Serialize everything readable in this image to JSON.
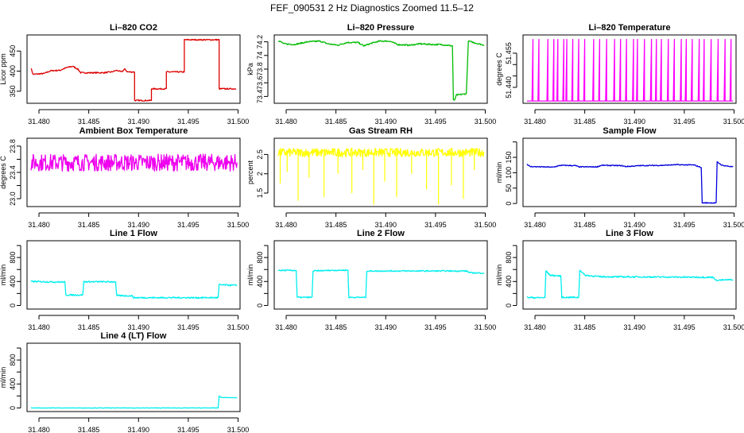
{
  "title": "FEF_090531  2 Hz Diagnostics Zoomed 11.5–12",
  "chart_data": [
    {
      "type": "line",
      "title": "Li–820 CO2",
      "ylabel": "Licor ppm",
      "color": "#dd0000",
      "xlim": [
        31.4788,
        31.5002
      ],
      "ylim": [
        320,
        490
      ],
      "yticks": [
        350,
        400,
        450
      ],
      "noise": 1.5,
      "xticks": [
        31.48,
        31.485,
        31.49,
        31.495,
        31.5
      ],
      "xticklabels": [
        "31.480",
        "31.485",
        "31.490",
        "31.495",
        "31.500"
      ],
      "points": [
        [
          31.4792,
          408
        ],
        [
          31.4794,
          392
        ],
        [
          31.4805,
          394
        ],
        [
          31.4812,
          401
        ],
        [
          31.4821,
          402
        ],
        [
          31.4828,
          409
        ],
        [
          31.4834,
          412
        ],
        [
          31.4839,
          405
        ],
        [
          31.4842,
          396
        ],
        [
          31.4865,
          396
        ],
        [
          31.4873,
          398
        ],
        [
          31.4878,
          402
        ],
        [
          31.4883,
          398
        ],
        [
          31.4886,
          405
        ],
        [
          31.4889,
          398
        ],
        [
          31.4896,
          398
        ],
        [
          31.4896,
          327
        ],
        [
          31.4913,
          327
        ],
        [
          31.4913,
          356
        ],
        [
          31.4928,
          356
        ],
        [
          31.4928,
          398
        ],
        [
          31.4946,
          398
        ],
        [
          31.4946,
          478
        ],
        [
          31.4981,
          478
        ],
        [
          31.4981,
          356
        ],
        [
          31.4998,
          356
        ]
      ]
    },
    {
      "type": "line",
      "title": "Li–820 Pressure",
      "ylabel": "kPa",
      "color": "#00bb00",
      "xlim": [
        31.4788,
        31.5002
      ],
      "ylim": [
        73.3,
        74.3
      ],
      "yticks": [
        73.4,
        73.6,
        73.8,
        74.0,
        74.2
      ],
      "noise": 0.01,
      "xticks": [
        31.48,
        31.485,
        31.49,
        31.495,
        31.5
      ],
      "xticklabels": [
        "31.480",
        "31.485",
        "31.490",
        "31.495",
        "31.500"
      ],
      "points": [
        [
          31.4792,
          74.22
        ],
        [
          31.4798,
          74.17
        ],
        [
          31.4808,
          74.16
        ],
        [
          31.4815,
          74.18
        ],
        [
          31.4822,
          74.2
        ],
        [
          31.4834,
          74.21
        ],
        [
          31.4842,
          74.17
        ],
        [
          31.4852,
          74.15
        ],
        [
          31.4861,
          74.19
        ],
        [
          31.4872,
          74.19
        ],
        [
          31.4878,
          74.14
        ],
        [
          31.4886,
          74.18
        ],
        [
          31.4894,
          74.21
        ],
        [
          31.4904,
          74.21
        ],
        [
          31.4912,
          74.16
        ],
        [
          31.4924,
          74.15
        ],
        [
          31.4934,
          74.17
        ],
        [
          31.4948,
          74.16
        ],
        [
          31.4956,
          74.16
        ],
        [
          31.4967,
          74.14
        ],
        [
          31.4968,
          73.35
        ],
        [
          31.4969,
          73.34
        ],
        [
          31.4971,
          73.42
        ],
        [
          31.4981,
          73.44
        ],
        [
          31.4983,
          74.21
        ],
        [
          31.4988,
          74.19
        ],
        [
          31.4999,
          74.15
        ]
      ]
    },
    {
      "type": "line",
      "title": "Li–820 Temperature",
      "ylabel": "degrees C",
      "color": "#ff00ff",
      "xlim": [
        31.4788,
        31.5002
      ],
      "ylim": [
        51.433,
        51.463
      ],
      "yticks": [
        51.44,
        51.445,
        51.45,
        51.455
      ],
      "yticklabels": [
        "51.440",
        "",
        "",
        "51.455"
      ],
      "noise": 0,
      "xticks": [
        31.48,
        31.485,
        31.49,
        31.495,
        31.5
      ],
      "xticklabels": [
        "31.480",
        "31.485",
        "31.490",
        "31.495",
        "31.500"
      ],
      "points": [
        [
          31.4792,
          51.434
        ],
        [
          31.4797,
          51.434
        ],
        [
          31.4798,
          51.461
        ],
        [
          31.4798,
          51.434
        ],
        [
          31.4803,
          51.434
        ],
        [
          31.4804,
          51.461
        ],
        [
          31.4804,
          51.434
        ],
        [
          31.4812,
          51.434
        ],
        [
          31.4813,
          51.461
        ],
        [
          31.4813,
          51.434
        ],
        [
          31.4818,
          51.434
        ],
        [
          31.4819,
          51.461
        ],
        [
          31.4819,
          51.434
        ],
        [
          31.4822,
          51.434
        ],
        [
          31.4823,
          51.461
        ],
        [
          31.4823,
          51.434
        ],
        [
          31.4828,
          51.434
        ],
        [
          31.4829,
          51.461
        ],
        [
          31.4829,
          51.434
        ],
        [
          31.4831,
          51.434
        ],
        [
          31.4832,
          51.461
        ],
        [
          31.4832,
          51.434
        ],
        [
          31.4837,
          51.434
        ],
        [
          31.4838,
          51.461
        ],
        [
          31.4838,
          51.434
        ],
        [
          31.4843,
          51.434
        ],
        [
          31.4844,
          51.461
        ],
        [
          31.4844,
          51.434
        ],
        [
          31.4849,
          51.434
        ],
        [
          31.485,
          51.461
        ],
        [
          31.485,
          51.434
        ],
        [
          31.4858,
          51.434
        ],
        [
          31.4859,
          51.461
        ],
        [
          31.4859,
          51.434
        ],
        [
          31.4864,
          51.434
        ],
        [
          31.4865,
          51.461
        ],
        [
          31.4865,
          51.434
        ],
        [
          31.4871,
          51.434
        ],
        [
          31.4872,
          51.461
        ],
        [
          31.4872,
          51.434
        ],
        [
          31.4879,
          51.434
        ],
        [
          31.488,
          51.461
        ],
        [
          31.488,
          51.434
        ],
        [
          31.4885,
          51.434
        ],
        [
          31.4886,
          51.461
        ],
        [
          31.4886,
          51.434
        ],
        [
          31.4891,
          51.434
        ],
        [
          31.4892,
          51.461
        ],
        [
          31.4892,
          51.434
        ],
        [
          31.4898,
          51.434
        ],
        [
          31.4899,
          51.461
        ],
        [
          31.4899,
          51.434
        ],
        [
          31.4902,
          51.434
        ],
        [
          31.4903,
          51.461
        ],
        [
          31.4903,
          51.434
        ],
        [
          31.4909,
          51.434
        ],
        [
          31.491,
          51.461
        ],
        [
          31.491,
          51.434
        ],
        [
          31.4916,
          51.434
        ],
        [
          31.4917,
          51.461
        ],
        [
          31.4917,
          51.434
        ],
        [
          31.4921,
          51.434
        ],
        [
          31.4922,
          51.461
        ],
        [
          31.4922,
          51.434
        ],
        [
          31.4926,
          51.434
        ],
        [
          31.4927,
          51.461
        ],
        [
          31.4927,
          51.434
        ],
        [
          31.4933,
          51.434
        ],
        [
          31.4934,
          51.461
        ],
        [
          31.4934,
          51.434
        ],
        [
          31.4939,
          51.434
        ],
        [
          31.494,
          51.461
        ],
        [
          31.494,
          51.434
        ],
        [
          31.4946,
          51.434
        ],
        [
          31.4947,
          51.461
        ],
        [
          31.4947,
          51.434
        ],
        [
          31.4951,
          51.434
        ],
        [
          31.4952,
          51.461
        ],
        [
          31.4952,
          51.434
        ],
        [
          31.4957,
          51.434
        ],
        [
          31.4958,
          51.461
        ],
        [
          31.4958,
          51.434
        ],
        [
          31.4964,
          51.434
        ],
        [
          31.4965,
          51.461
        ],
        [
          31.4965,
          51.434
        ],
        [
          31.4969,
          51.434
        ],
        [
          31.497,
          51.461
        ],
        [
          31.497,
          51.434
        ],
        [
          31.4976,
          51.434
        ],
        [
          31.4977,
          51.461
        ],
        [
          31.4977,
          51.434
        ],
        [
          31.4983,
          51.434
        ],
        [
          31.4984,
          51.461
        ],
        [
          31.4984,
          51.434
        ],
        [
          31.499,
          51.434
        ],
        [
          31.4991,
          51.461
        ],
        [
          31.4991,
          51.434
        ],
        [
          31.4996,
          51.434
        ],
        [
          31.4997,
          51.461
        ],
        [
          31.4997,
          51.434
        ],
        [
          31.4999,
          51.434
        ]
      ]
    },
    {
      "type": "line",
      "title": "Ambient Box Temperature",
      "ylabel": "degrees C",
      "color": "#ee00ee",
      "xlim": [
        31.4788,
        31.5002
      ],
      "ylim": [
        22.88,
        23.92
      ],
      "yticks": [
        23.0,
        23.2,
        23.4,
        23.6,
        23.8
      ],
      "yticklabels": [
        "23.0",
        "",
        "23.4",
        "",
        "23.8"
      ],
      "noise": 0.13,
      "xticks": [
        31.48,
        31.485,
        31.49,
        31.495,
        31.5
      ],
      "xticklabels": [
        "31.480",
        "31.485",
        "31.490",
        "31.495",
        "31.500"
      ],
      "points": [
        [
          31.4792,
          23.55
        ],
        [
          31.4999,
          23.55
        ]
      ]
    },
    {
      "type": "line",
      "title": "Gas Stream RH",
      "ylabel": "percent",
      "color": "#ffff00",
      "xlim": [
        31.4788,
        31.5002
      ],
      "ylim": [
        1.15,
        2.92
      ],
      "yticks": [
        1.5,
        2.0,
        2.5
      ],
      "noise": 0.11,
      "xticks": [
        31.48,
        31.485,
        31.49,
        31.495,
        31.5
      ],
      "xticklabels": [
        "31.480",
        "31.485",
        "31.490",
        "31.495",
        "31.500"
      ],
      "points": [
        [
          31.4792,
          2.55
        ],
        [
          31.4999,
          2.55
        ]
      ],
      "spikes": [
        [
          31.4794,
          1.75
        ],
        [
          31.4801,
          2.05
        ],
        [
          31.4812,
          1.3
        ],
        [
          31.4823,
          1.9
        ],
        [
          31.4838,
          1.4
        ],
        [
          31.4852,
          2.0
        ],
        [
          31.4866,
          1.5
        ],
        [
          31.4877,
          2.1
        ],
        [
          31.4888,
          1.2
        ],
        [
          31.4899,
          1.8
        ],
        [
          31.4911,
          1.4
        ],
        [
          31.4926,
          2.0
        ],
        [
          31.4941,
          1.6
        ],
        [
          31.4953,
          1.2
        ],
        [
          31.4966,
          1.7
        ],
        [
          31.4978,
          1.35
        ],
        [
          31.4989,
          2.1
        ]
      ]
    },
    {
      "type": "line",
      "title": "Sample Flow",
      "ylabel": "ml/min",
      "color": "#0000dd",
      "xlim": [
        31.4788,
        31.5002
      ],
      "ylim": [
        -10,
        212
      ],
      "yticks": [
        0,
        50,
        100,
        150,
        200
      ],
      "yticklabels": [
        "0",
        "50",
        "100",
        "150",
        ""
      ],
      "noise": 1.5,
      "xticks": [
        31.48,
        31.485,
        31.49,
        31.495,
        31.5
      ],
      "xticklabels": [
        "31.480",
        "31.485",
        "31.490",
        "31.495",
        "31.500"
      ],
      "points": [
        [
          31.4792,
          128
        ],
        [
          31.4795,
          120
        ],
        [
          31.4818,
          118
        ],
        [
          31.4826,
          124
        ],
        [
          31.4841,
          123
        ],
        [
          31.4844,
          119
        ],
        [
          31.4862,
          119
        ],
        [
          31.4867,
          124
        ],
        [
          31.4887,
          123
        ],
        [
          31.4891,
          120
        ],
        [
          31.4906,
          123
        ],
        [
          31.4928,
          124
        ],
        [
          31.4942,
          126
        ],
        [
          31.496,
          125
        ],
        [
          31.4967,
          117
        ],
        [
          31.4968,
          2
        ],
        [
          31.4982,
          2
        ],
        [
          31.4983,
          135
        ],
        [
          31.4988,
          124
        ],
        [
          31.4999,
          119
        ]
      ]
    },
    {
      "type": "line",
      "title": "Line 1 Flow",
      "ylabel": "ml/min",
      "color": "#00eeee",
      "xlim": [
        31.4788,
        31.5002
      ],
      "ylim": [
        -60,
        1080
      ],
      "yticks": [
        0,
        200,
        400,
        600,
        800,
        1000
      ],
      "yticklabels": [
        "0",
        "",
        "400",
        "",
        "800",
        ""
      ],
      "noise": 12,
      "xticks": [
        31.48,
        31.485,
        31.49,
        31.495,
        31.5
      ],
      "xticklabels": [
        "31.480",
        "31.485",
        "31.490",
        "31.495",
        "31.500"
      ],
      "points": [
        [
          31.4792,
          400
        ],
        [
          31.4826,
          390
        ],
        [
          31.4827,
          175
        ],
        [
          31.4844,
          175
        ],
        [
          31.4845,
          395
        ],
        [
          31.4877,
          395
        ],
        [
          31.4878,
          165
        ],
        [
          31.4894,
          160
        ],
        [
          31.4895,
          130
        ],
        [
          31.498,
          130
        ],
        [
          31.4981,
          345
        ],
        [
          31.4999,
          335
        ]
      ]
    },
    {
      "type": "line",
      "title": "Line 2 Flow",
      "ylabel": "ml/min",
      "color": "#00eeee",
      "xlim": [
        31.4788,
        31.5002
      ],
      "ylim": [
        -60,
        1080
      ],
      "yticks": [
        0,
        200,
        400,
        600,
        800,
        1000
      ],
      "yticklabels": [
        "0",
        "",
        "400",
        "",
        "800",
        ""
      ],
      "noise": 10,
      "xticks": [
        31.48,
        31.485,
        31.49,
        31.495,
        31.5
      ],
      "xticklabels": [
        "31.480",
        "31.485",
        "31.490",
        "31.495",
        "31.500"
      ],
      "points": [
        [
          31.4792,
          585
        ],
        [
          31.481,
          585
        ],
        [
          31.4811,
          135
        ],
        [
          31.4826,
          135
        ],
        [
          31.4827,
          575
        ],
        [
          31.4844,
          585
        ],
        [
          31.4862,
          590
        ],
        [
          31.4863,
          135
        ],
        [
          31.488,
          135
        ],
        [
          31.4881,
          575
        ],
        [
          31.4981,
          575
        ],
        [
          31.4985,
          545
        ],
        [
          31.4999,
          540
        ]
      ]
    },
    {
      "type": "line",
      "title": "Line 3 Flow",
      "ylabel": "ml/min",
      "color": "#00eeee",
      "xlim": [
        31.4788,
        31.5002
      ],
      "ylim": [
        -60,
        1080
      ],
      "yticks": [
        0,
        200,
        400,
        600,
        800,
        1000
      ],
      "yticklabels": [
        "0",
        "",
        "400",
        "",
        "800",
        ""
      ],
      "noise": 12,
      "xticks": [
        31.48,
        31.485,
        31.49,
        31.495,
        31.5
      ],
      "xticklabels": [
        "31.480",
        "31.485",
        "31.490",
        "31.495",
        "31.500"
      ],
      "points": [
        [
          31.4792,
          135
        ],
        [
          31.48,
          130
        ],
        [
          31.481,
          130
        ],
        [
          31.4811,
          580
        ],
        [
          31.4815,
          505
        ],
        [
          31.4826,
          490
        ],
        [
          31.4827,
          135
        ],
        [
          31.4844,
          135
        ],
        [
          31.4845,
          595
        ],
        [
          31.485,
          505
        ],
        [
          31.4865,
          480
        ],
        [
          31.498,
          470
        ],
        [
          31.4981,
          420
        ],
        [
          31.4999,
          430
        ]
      ]
    },
    {
      "type": "line",
      "title": "Line 4 (LT) Flow",
      "ylabel": "ml/min",
      "color": "#00eeee",
      "xlim": [
        31.4788,
        31.5002
      ],
      "ylim": [
        -60,
        1080
      ],
      "yticks": [
        0,
        200,
        400,
        600,
        800,
        1000
      ],
      "yticklabels": [
        "0",
        "",
        "400",
        "",
        "800",
        ""
      ],
      "noise": 3,
      "xticks": [
        31.48,
        31.485,
        31.49,
        31.495,
        31.5
      ],
      "xticklabels": [
        "31.480",
        "31.485",
        "31.490",
        "31.495",
        "31.500"
      ],
      "points": [
        [
          31.4792,
          0
        ],
        [
          31.498,
          0
        ],
        [
          31.4981,
          200
        ],
        [
          31.4983,
          175
        ],
        [
          31.4999,
          170
        ]
      ]
    }
  ]
}
